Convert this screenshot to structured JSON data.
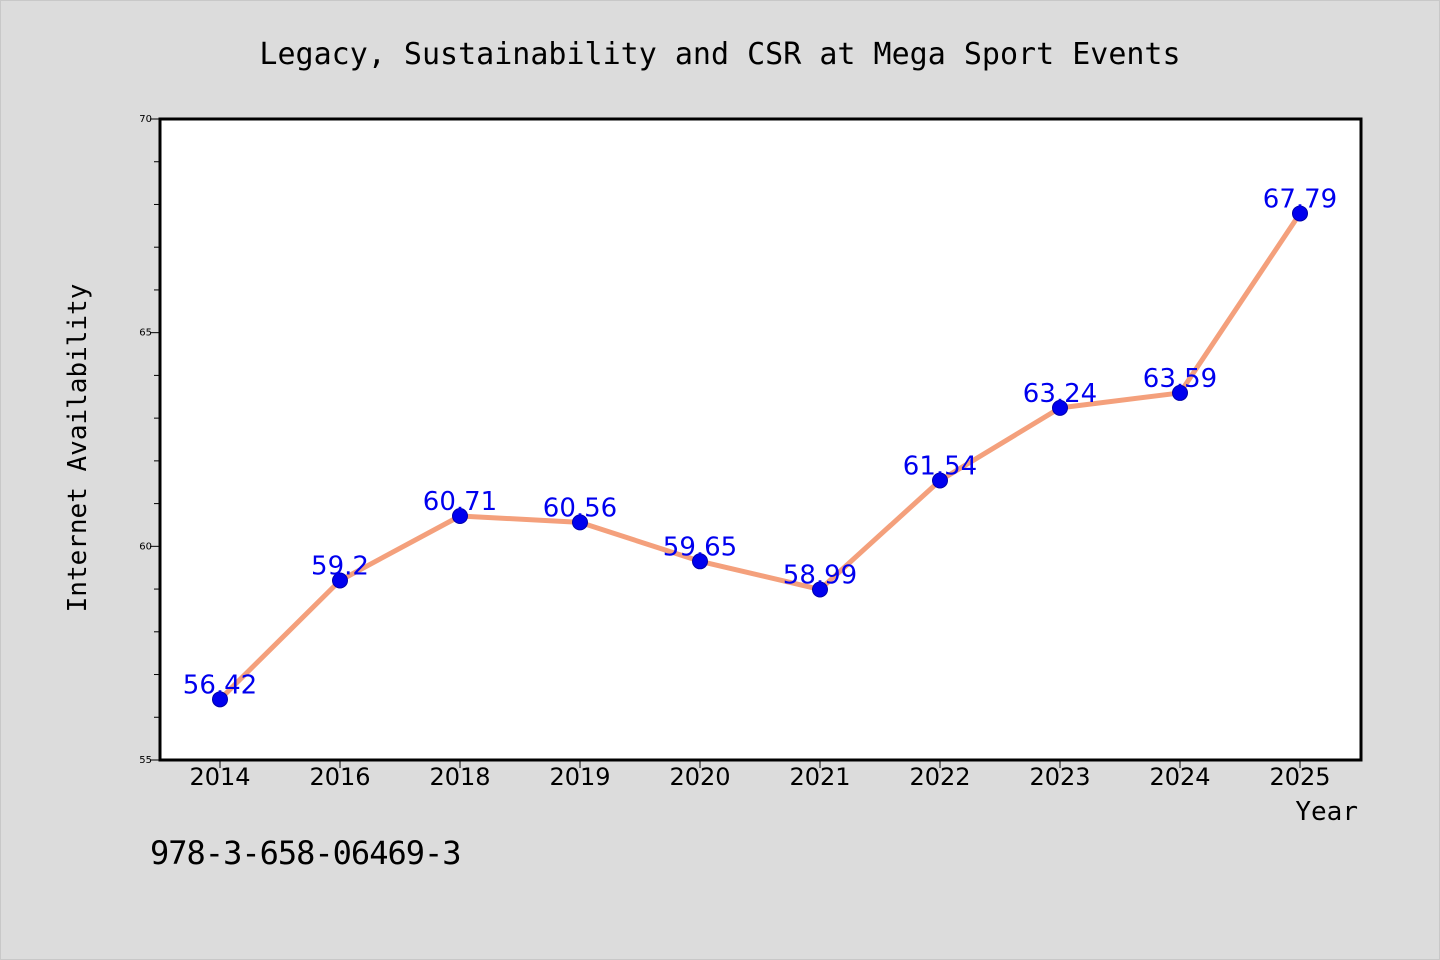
{
  "chart_data": {
    "type": "line",
    "title": "Legacy, Sustainability and CSR at Mega Sport Events",
    "xlabel": "Year",
    "ylabel": "Internet Availability",
    "categories": [
      "2014",
      "2016",
      "2018",
      "2019",
      "2020",
      "2021",
      "2022",
      "2023",
      "2024",
      "2025"
    ],
    "series": [
      {
        "values": [
          56.42,
          59.2,
          60.71,
          60.56,
          59.65,
          58.99,
          61.54,
          63.24,
          63.59,
          67.79
        ],
        "data_labels": [
          "56.42",
          "59.2",
          "60.71",
          "60.56",
          "59.65",
          "58.99",
          "61.54",
          "63.24",
          "63.59",
          "67.79"
        ]
      }
    ],
    "ylim": [
      55,
      70
    ],
    "yticks": [
      "55",
      "60",
      "65",
      "70"
    ],
    "ytick_values": [
      55,
      60,
      65,
      70
    ],
    "grid": false,
    "colors": {
      "line": "#f4a07c",
      "marker": "#0000ee",
      "label": "#0000ee",
      "plot_background": "#ffffff",
      "page_background": "#dcdcdc"
    }
  },
  "footer": {
    "isbn": "978-3-658-06469-3"
  }
}
